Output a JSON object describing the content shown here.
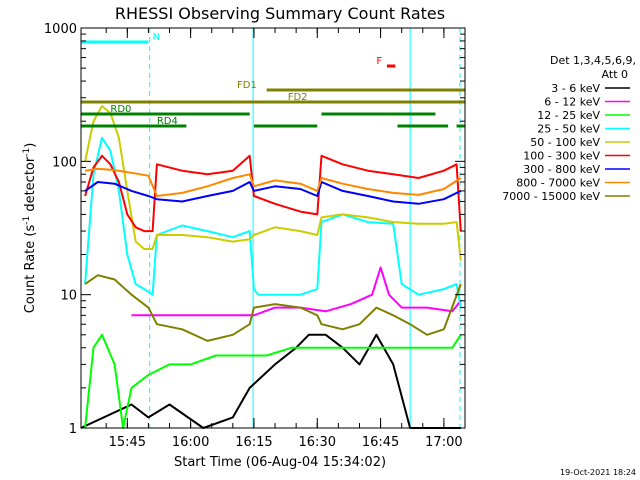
{
  "chart_data": {
    "type": "line",
    "title": "RHESSI Observing Summary Count Rates",
    "xlabel": "Start Time (06-Aug-04 15:34:02)",
    "ylabel_main": "Count Rate (s",
    "ylabel_sup": "-1",
    "ylabel_tail": " detector",
    "ylabel_close": ")",
    "y_scale": "log",
    "ylim": [
      1,
      1000
    ],
    "xlim_minutes": [
      34.03,
      125.0
    ],
    "y_ticks": [
      {
        "v": 1,
        "label": "1"
      },
      {
        "v": 10,
        "label": "10"
      },
      {
        "v": 100,
        "label": "100"
      },
      {
        "v": 1000,
        "label": "1000"
      }
    ],
    "x_ticks": [
      {
        "m": 45,
        "label": "15:45"
      },
      {
        "m": 60,
        "label": "16:00"
      },
      {
        "m": 75,
        "label": "16:15"
      },
      {
        "m": 90,
        "label": "16:30"
      },
      {
        "m": 105,
        "label": "16:45"
      },
      {
        "m": 120,
        "label": "17:00"
      }
    ],
    "legend_header": [
      "Det 1,3,4,5,6,9,",
      "Att 0"
    ],
    "legend_placement": "right",
    "series": [
      {
        "name": "3 - 6 keV",
        "color": "#000000",
        "points": [
          [
            34,
            1
          ],
          [
            46,
            1.5
          ],
          [
            50,
            1.2
          ],
          [
            55,
            1.5
          ],
          [
            63,
            1
          ],
          [
            70,
            1.2
          ],
          [
            74,
            2
          ],
          [
            80,
            3
          ],
          [
            85,
            4
          ],
          [
            88,
            5
          ],
          [
            92,
            5
          ],
          [
            96,
            4
          ],
          [
            100,
            3
          ],
          [
            104,
            5
          ],
          [
            108,
            3
          ],
          [
            112,
            1
          ],
          [
            116,
            1
          ],
          [
            124,
            1
          ]
        ]
      },
      {
        "name": "6 - 12 keV",
        "color": "#ff00ff",
        "points": [
          [
            46,
            7
          ],
          [
            52,
            7
          ],
          [
            58,
            7
          ],
          [
            64,
            7
          ],
          [
            70,
            7
          ],
          [
            75,
            7
          ],
          [
            80,
            8
          ],
          [
            86,
            8
          ],
          [
            92,
            7.5
          ],
          [
            98,
            8.5
          ],
          [
            103,
            10
          ],
          [
            105,
            16
          ],
          [
            107,
            10
          ],
          [
            110,
            8
          ],
          [
            116,
            8
          ],
          [
            122,
            7.5
          ],
          [
            124,
            9
          ]
        ]
      },
      {
        "name": "12 - 25 keV",
        "color": "#00ff00",
        "points": [
          [
            35,
            1
          ],
          [
            37,
            4
          ],
          [
            39,
            5
          ],
          [
            42,
            3
          ],
          [
            44,
            1
          ],
          [
            46,
            2
          ],
          [
            50,
            2.5
          ],
          [
            55,
            3
          ],
          [
            60,
            3
          ],
          [
            66,
            3.5
          ],
          [
            72,
            3.5
          ],
          [
            78,
            3.5
          ],
          [
            84,
            4
          ],
          [
            90,
            4
          ],
          [
            96,
            4
          ],
          [
            102,
            4
          ],
          [
            108,
            4
          ],
          [
            114,
            4
          ],
          [
            118,
            4
          ],
          [
            122,
            4
          ],
          [
            124,
            5
          ]
        ]
      },
      {
        "name": "25 - 50 keV",
        "color": "#00ffff",
        "points": [
          [
            35,
            12
          ],
          [
            37,
            80
          ],
          [
            39,
            150
          ],
          [
            41,
            120
          ],
          [
            43,
            60
          ],
          [
            45,
            20
          ],
          [
            47,
            12
          ],
          [
            49,
            11
          ],
          [
            51,
            10
          ],
          [
            52,
            28
          ],
          [
            58,
            33
          ],
          [
            64,
            30
          ],
          [
            70,
            27
          ],
          [
            74,
            30
          ],
          [
            75,
            11
          ],
          [
            76,
            10
          ],
          [
            80,
            10
          ],
          [
            86,
            10
          ],
          [
            90,
            11
          ],
          [
            91,
            35
          ],
          [
            96,
            40
          ],
          [
            102,
            35
          ],
          [
            108,
            34
          ],
          [
            110,
            12
          ],
          [
            114,
            10
          ],
          [
            120,
            11
          ],
          [
            123,
            12
          ],
          [
            124,
            8
          ]
        ]
      },
      {
        "name": "50 - 100 keV",
        "color": "#cccc00",
        "points": [
          [
            35,
            100
          ],
          [
            37,
            200
          ],
          [
            39,
            260
          ],
          [
            41,
            230
          ],
          [
            43,
            150
          ],
          [
            45,
            60
          ],
          [
            47,
            25
          ],
          [
            49,
            22
          ],
          [
            51,
            22
          ],
          [
            52,
            28
          ],
          [
            58,
            28
          ],
          [
            64,
            27
          ],
          [
            70,
            25
          ],
          [
            74,
            26
          ],
          [
            75,
            28
          ],
          [
            80,
            32
          ],
          [
            86,
            30
          ],
          [
            90,
            28
          ],
          [
            91,
            38
          ],
          [
            96,
            40
          ],
          [
            102,
            38
          ],
          [
            108,
            35
          ],
          [
            114,
            34
          ],
          [
            120,
            34
          ],
          [
            123,
            35
          ],
          [
            124,
            18
          ]
        ]
      },
      {
        "name": "100 - 300 keV",
        "color": "#ff0000",
        "points": [
          [
            35,
            55
          ],
          [
            37,
            90
          ],
          [
            39,
            110
          ],
          [
            41,
            95
          ],
          [
            43,
            70
          ],
          [
            45,
            40
          ],
          [
            47,
            32
          ],
          [
            49,
            30
          ],
          [
            51,
            30
          ],
          [
            52,
            95
          ],
          [
            58,
            85
          ],
          [
            64,
            80
          ],
          [
            70,
            85
          ],
          [
            74,
            110
          ],
          [
            75,
            55
          ],
          [
            80,
            48
          ],
          [
            86,
            42
          ],
          [
            90,
            40
          ],
          [
            91,
            110
          ],
          [
            96,
            95
          ],
          [
            102,
            85
          ],
          [
            108,
            80
          ],
          [
            114,
            75
          ],
          [
            120,
            85
          ],
          [
            123,
            95
          ],
          [
            124,
            30
          ]
        ]
      },
      {
        "name": "300 - 800 keV",
        "color": "#0000ff",
        "points": [
          [
            35,
            60
          ],
          [
            38,
            70
          ],
          [
            42,
            68
          ],
          [
            46,
            60
          ],
          [
            50,
            55
          ],
          [
            52,
            52
          ],
          [
            58,
            50
          ],
          [
            64,
            55
          ],
          [
            70,
            60
          ],
          [
            74,
            70
          ],
          [
            75,
            60
          ],
          [
            80,
            65
          ],
          [
            86,
            62
          ],
          [
            90,
            55
          ],
          [
            91,
            70
          ],
          [
            96,
            60
          ],
          [
            102,
            55
          ],
          [
            108,
            50
          ],
          [
            114,
            48
          ],
          [
            120,
            52
          ],
          [
            124,
            60
          ]
        ]
      },
      {
        "name": "800 - 7000 keV",
        "color": "#ff8800",
        "points": [
          [
            35,
            85
          ],
          [
            38,
            88
          ],
          [
            42,
            86
          ],
          [
            46,
            82
          ],
          [
            50,
            78
          ],
          [
            52,
            55
          ],
          [
            58,
            58
          ],
          [
            64,
            65
          ],
          [
            70,
            75
          ],
          [
            74,
            80
          ],
          [
            75,
            65
          ],
          [
            80,
            72
          ],
          [
            86,
            68
          ],
          [
            90,
            60
          ],
          [
            91,
            75
          ],
          [
            96,
            68
          ],
          [
            102,
            62
          ],
          [
            108,
            58
          ],
          [
            114,
            56
          ],
          [
            120,
            62
          ],
          [
            124,
            75
          ]
        ]
      },
      {
        "name": "7000 - 15000 keV",
        "color": "#808000",
        "points": [
          [
            35,
            12
          ],
          [
            38,
            14
          ],
          [
            42,
            13
          ],
          [
            46,
            10
          ],
          [
            50,
            8
          ],
          [
            52,
            6
          ],
          [
            58,
            5.5
          ],
          [
            64,
            4.5
          ],
          [
            70,
            5
          ],
          [
            74,
            6
          ],
          [
            75,
            8
          ],
          [
            80,
            8.5
          ],
          [
            86,
            8
          ],
          [
            90,
            7
          ],
          [
            91,
            6
          ],
          [
            96,
            5.5
          ],
          [
            100,
            6
          ],
          [
            104,
            8
          ],
          [
            108,
            7
          ],
          [
            112,
            6
          ],
          [
            116,
            5
          ],
          [
            120,
            5.5
          ],
          [
            124,
            12
          ]
        ]
      }
    ],
    "flags": [
      {
        "name": "N",
        "color": "#00ffff",
        "y": 0.965,
        "segments": [
          [
            34,
            50
          ]
        ],
        "label": "N",
        "label_at": 51
      },
      {
        "name": "F",
        "color": "#ff0000",
        "y": 0.905,
        "segments": [
          [
            106.5,
            108.5
          ]
        ],
        "label": "F",
        "label_at": 104
      },
      {
        "name": "FD1",
        "color": "#808000",
        "y": 0.845,
        "segments": [
          [
            78,
            125
          ]
        ],
        "label": "FD1",
        "label_at": 71
      },
      {
        "name": "FD2",
        "color": "#808000",
        "y": 0.815,
        "segments": [
          [
            34,
            125
          ]
        ],
        "label": "FD2",
        "label_at": 83
      },
      {
        "name": "RD0",
        "color": "#008000",
        "y": 0.785,
        "segments": [
          [
            34,
            59
          ],
          [
            59,
            74
          ],
          [
            91,
            118
          ]
        ],
        "label": "RD0",
        "label_at": 41
      },
      {
        "name": "RD4",
        "color": "#008000",
        "y": 0.755,
        "segments": [
          [
            34,
            59
          ],
          [
            75,
            90
          ],
          [
            109,
            121
          ],
          [
            123,
            125
          ]
        ],
        "label": "RD4",
        "label_at": 52
      }
    ],
    "saa_markers": [
      {
        "m": 50.3,
        "style": "dashed",
        "color": "#00ffff"
      },
      {
        "m": 74.8,
        "style": "solid",
        "color": "#00ffff"
      },
      {
        "m": 112.0,
        "style": "solid",
        "color": "#00ffff"
      },
      {
        "m": 123.8,
        "style": "dashed",
        "color": "#00ffff"
      }
    ]
  },
  "footer_date": "19-Oct-2021 18:24"
}
